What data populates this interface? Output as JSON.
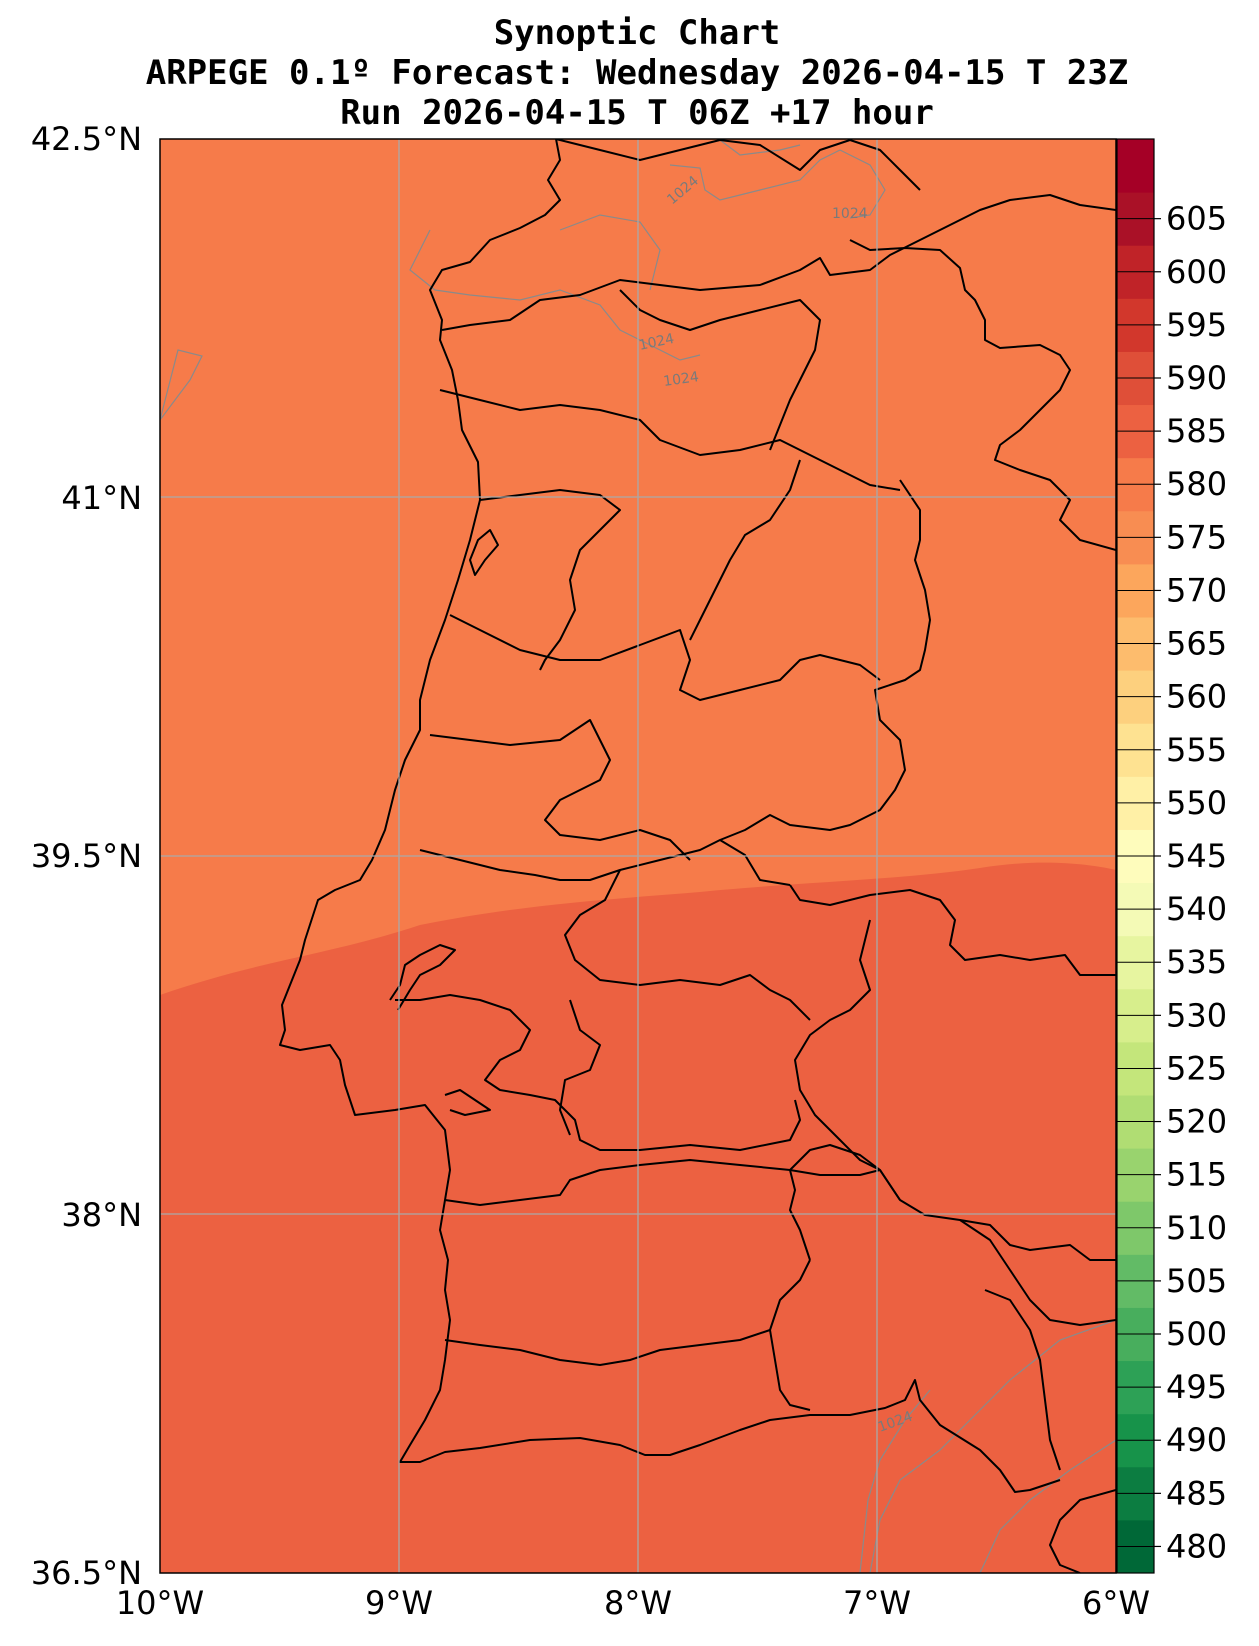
{
  "title": {
    "line1": "Synoptic Chart",
    "line2": "ARPEGE 0.1º Forecast: Wednesday 2026-04-15 T 23Z",
    "line3": "Run 2026-04-15 T 06Z +17 hour"
  },
  "map": {
    "lon_range": [
      -10,
      -6
    ],
    "lat_range": [
      36.5,
      42.5
    ],
    "x_ticks": [
      {
        "value": -10,
        "label": "10°W"
      },
      {
        "value": -9,
        "label": "9°W"
      },
      {
        "value": -8,
        "label": "8°W"
      },
      {
        "value": -7,
        "label": "7°W"
      },
      {
        "value": -6,
        "label": "6°W"
      }
    ],
    "y_ticks": [
      {
        "value": 42.5,
        "label": "42.5°N"
      },
      {
        "value": 41,
        "label": "41°N"
      },
      {
        "value": 39.5,
        "label": "39.5°N"
      },
      {
        "value": 38,
        "label": "38°N"
      },
      {
        "value": 36.5,
        "label": "36.5°N"
      }
    ],
    "gridlines": true,
    "field_fill": {
      "north_level": 575,
      "south_level": 580,
      "north_color": "#f67b4a",
      "south_color": "#ec6141"
    },
    "isobar_label": "1024",
    "isobar_color": "#8a8a8a"
  },
  "colorbar": {
    "levels": [
      {
        "value": 480,
        "label": "480",
        "color": "#006837"
      },
      {
        "value": 485,
        "label": "485",
        "color": "#0c7d41"
      },
      {
        "value": 490,
        "label": "490",
        "color": "#17934a"
      },
      {
        "value": 495,
        "label": "495",
        "color": "#2da156"
      },
      {
        "value": 500,
        "label": "500",
        "color": "#48ae5d"
      },
      {
        "value": 505,
        "label": "505",
        "color": "#62bb66"
      },
      {
        "value": 510,
        "label": "510",
        "color": "#7ec86a"
      },
      {
        "value": 515,
        "label": "515",
        "color": "#99d36e"
      },
      {
        "value": 520,
        "label": "520",
        "color": "#b0dd73"
      },
      {
        "value": 525,
        "label": "525",
        "color": "#c4e67b"
      },
      {
        "value": 530,
        "label": "530",
        "color": "#d7ee8c"
      },
      {
        "value": 535,
        "label": "535",
        "color": "#e7f5a0"
      },
      {
        "value": 540,
        "label": "540",
        "color": "#f4fab6"
      },
      {
        "value": 545,
        "label": "545",
        "color": "#fefcbc"
      },
      {
        "value": 550,
        "label": "550",
        "color": "#fff0a6"
      },
      {
        "value": 555,
        "label": "555",
        "color": "#fee291"
      },
      {
        "value": 560,
        "label": "560",
        "color": "#fdd07e"
      },
      {
        "value": 565,
        "label": "565",
        "color": "#fdbc6d"
      },
      {
        "value": 570,
        "label": "570",
        "color": "#fca65c"
      },
      {
        "value": 575,
        "label": "575",
        "color": "#f88d52"
      },
      {
        "value": 580,
        "label": "580",
        "color": "#f67b4a"
      },
      {
        "value": 585,
        "label": "585",
        "color": "#ec6141"
      },
      {
        "value": 590,
        "label": "590",
        "color": "#df4f38"
      },
      {
        "value": 595,
        "label": "595",
        "color": "#d2372c"
      },
      {
        "value": 600,
        "label": "600",
        "color": "#c02328"
      },
      {
        "value": 605,
        "label": "605",
        "color": "#aa1127"
      },
      {
        "value": 610,
        "label": "",
        "color": "#a50026"
      }
    ]
  }
}
